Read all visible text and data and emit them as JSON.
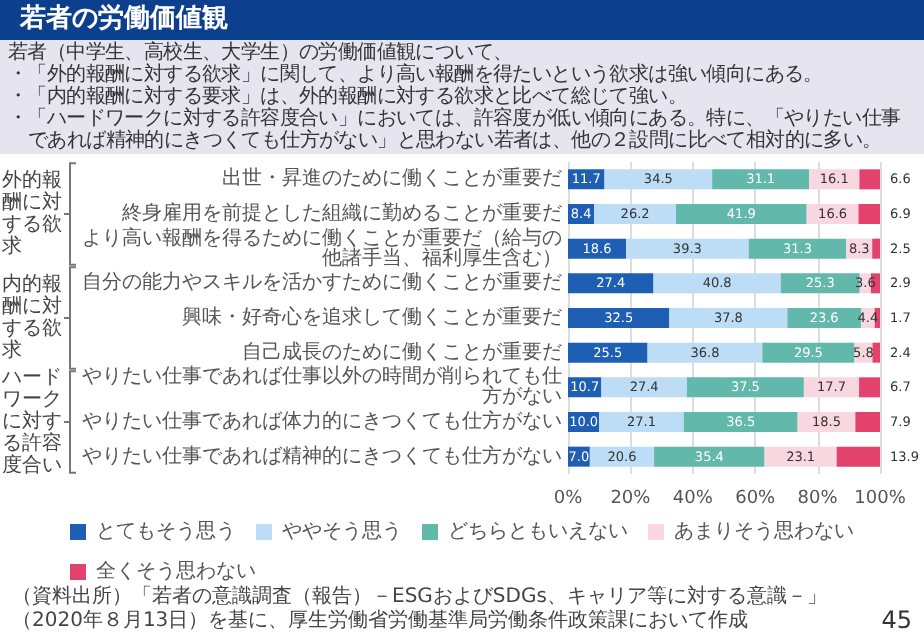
{
  "chart_data": {
    "type": "bar",
    "orientation": "horizontal",
    "stacked": true,
    "title": "若者の労働価値観",
    "subtitle": "若者（中学生、高校生、大学生）の労働価値観について、",
    "categories": [
      "出世・昇進のために働くことが重要だ",
      "終身雇用を前提とした組織に勤めることが重要だ",
      "より高い報酬を得るために働くことが重要だ（給与の他諸手当、福利厚生含む）",
      "自分の能力やスキルを活かすために働くことが重要だ",
      "興味・好奇心を追求して働くことが重要だ",
      "自己成長のために働くことが重要だ",
      "やりたい仕事であれば仕事以外の時間が削られても仕方がない",
      "やりたい仕事であれば体力的にきつくても仕方がない",
      "やりたい仕事であれば精神的にきつくても仕方がない"
    ],
    "series": [
      {
        "name": "とてもそう思う",
        "color": "#1f5fb3",
        "values": [
          11.7,
          8.4,
          18.6,
          27.4,
          32.5,
          25.5,
          10.7,
          10.0,
          7.0
        ],
        "value_labels": [
          "11.7",
          "8.4",
          "18.6",
          "27.4",
          "32.5",
          "25.5",
          "10.7",
          "10.0",
          "7.0"
        ]
      },
      {
        "name": "ややそう思う",
        "color": "#bddcf6",
        "values": [
          34.5,
          26.2,
          39.3,
          40.8,
          37.8,
          36.8,
          27.4,
          27.1,
          20.6
        ],
        "value_labels": [
          "34.5",
          "26.2",
          "39.3",
          "40.8",
          "37.8",
          "36.8",
          "27.4",
          "27.1",
          "20.6"
        ]
      },
      {
        "name": "どちらともいえない",
        "color": "#62b8aa",
        "values": [
          31.1,
          41.9,
          31.3,
          25.3,
          23.6,
          29.5,
          37.5,
          36.5,
          35.4
        ],
        "value_labels": [
          "31.1",
          "41.9",
          "31.3",
          "25.3",
          "23.6",
          "29.5",
          "37.5",
          "36.5",
          "35.4"
        ]
      },
      {
        "name": "あまりそう思わない",
        "color": "#f8d7e1",
        "values": [
          16.1,
          16.6,
          8.3,
          3.6,
          4.4,
          5.8,
          17.7,
          18.5,
          23.1
        ],
        "value_labels": [
          "16.1",
          "16.6",
          "8.3",
          "3.6",
          "4.4",
          "5.8",
          "17.7",
          "18.5",
          "23.1"
        ]
      },
      {
        "name": "全くそう思わない",
        "color": "#e2426c",
        "values": [
          6.6,
          6.9,
          2.5,
          2.9,
          1.7,
          2.4,
          6.7,
          7.9,
          13.9
        ],
        "value_labels": [
          "6.6",
          "6.9",
          "2.5",
          "2.9",
          "1.7",
          "2.4",
          "6.7",
          "7.9",
          "13.9"
        ]
      }
    ],
    "xlim": [
      0,
      100
    ],
    "xticks": [
      {
        "value": 0,
        "label": "0%"
      },
      {
        "value": 20,
        "label": "20%"
      },
      {
        "value": 40,
        "label": "40%"
      },
      {
        "value": 60,
        "label": "60%"
      },
      {
        "value": 80,
        "label": "80%"
      },
      {
        "value": 100,
        "label": "100%"
      }
    ],
    "grid": "x",
    "legend": "bottom",
    "annotations": [
      "・「外的報酬に対する欲求」に関して、より高い報酬を得たいという欲求は強い傾向にある。",
      "・「内的報酬に対する要求」は、外的報酬に対する欲求と比べて総じて強い。",
      "・「ハードワークに対する許容度合い」においては、許容度が低い傾向にある。特に、「やりたい仕事であれば精神的にきつくても仕方がない」と思わない若者は、他の２設問に比べて相対的に多い。",
      "外的報酬に対する欲求",
      "内的報酬に対する欲求",
      "ハードワークに対する許容度合い",
      "（資料出所）「若者の意識調査（報告）－ESGおよびSDGs、キャリア等に対する意識－」（2020年８月13日）を基に、厚生労働省労働基準局労働条件政策課において作成",
      "45"
    ]
  }
}
